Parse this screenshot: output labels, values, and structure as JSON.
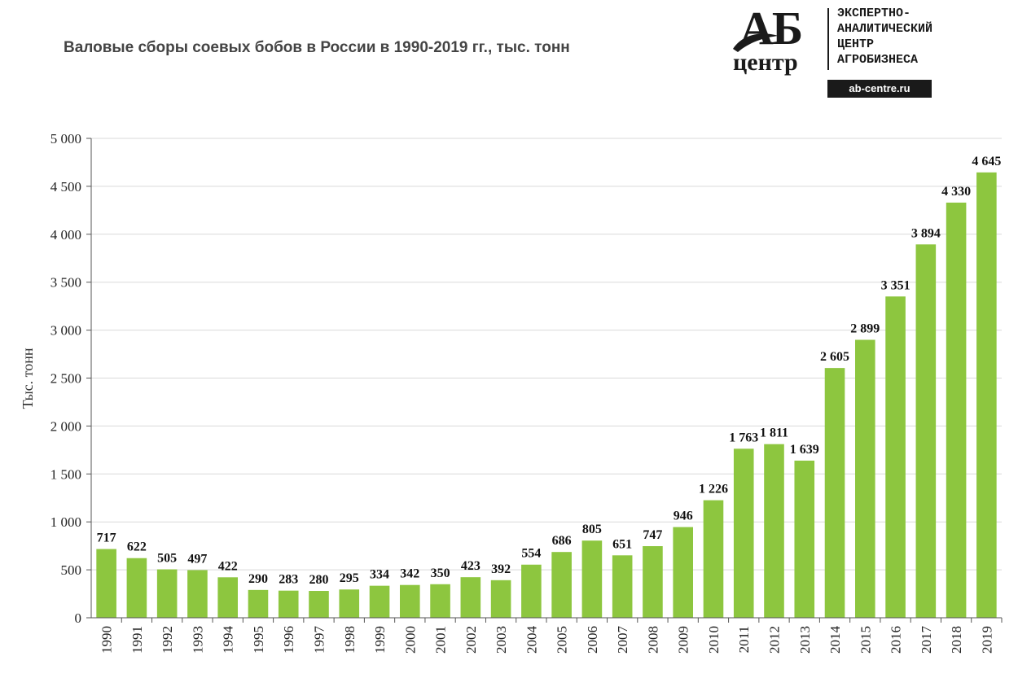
{
  "logo": {
    "mark": "АБ",
    "word": "центр",
    "lines": [
      "ЭКСПЕРТНО-",
      "АНАЛИТИЧЕСКИЙ",
      "ЦЕНТР",
      "АГРОБИЗНЕСА"
    ],
    "url": "ab-centre.ru"
  },
  "colors": {
    "bar": "#8dc63f",
    "grid": "#d9d9d9",
    "axis": "#555555",
    "logo": "#1a1a1a"
  },
  "chart_data": {
    "type": "bar",
    "title": "Валовые сборы соевых бобов в России в 1990-2019 гг., тыс. тонн",
    "xlabel": "",
    "ylabel": "Тыс. тонн",
    "ylim": [
      0,
      5000
    ],
    "yticks": [
      0,
      500,
      1000,
      1500,
      2000,
      2500,
      3000,
      3500,
      4000,
      4500,
      5000
    ],
    "ytick_labels": [
      "0",
      "500",
      "1 000",
      "1 500",
      "2 000",
      "2 500",
      "3 000",
      "3 500",
      "4 000",
      "4 500",
      "5 000"
    ],
    "grid": true,
    "categories": [
      "1990",
      "1991",
      "1992",
      "1993",
      "1994",
      "1995",
      "1996",
      "1997",
      "1998",
      "1999",
      "2000",
      "2001",
      "2002",
      "2003",
      "2004",
      "2005",
      "2006",
      "2007",
      "2008",
      "2009",
      "2010",
      "2011",
      "2012",
      "2013",
      "2014",
      "2015",
      "2016",
      "2017",
      "2018",
      "2019"
    ],
    "values": [
      717,
      622,
      505,
      497,
      422,
      290,
      283,
      280,
      295,
      334,
      342,
      350,
      423,
      392,
      554,
      686,
      805,
      651,
      747,
      946,
      1226,
      1763,
      1811,
      1639,
      2605,
      2899,
      3351,
      3894,
      4330,
      4645
    ],
    "data_labels": [
      "717",
      "622",
      "505",
      "497",
      "422",
      "290",
      "283",
      "280",
      "295",
      "334",
      "342",
      "350",
      "423",
      "392",
      "554",
      "686",
      "805",
      "651",
      "747",
      "946",
      "1 226",
      "1 763",
      "1 811",
      "1 639",
      "2 605",
      "2 899",
      "3 351",
      "3 894",
      "4 330",
      "4 645"
    ]
  }
}
